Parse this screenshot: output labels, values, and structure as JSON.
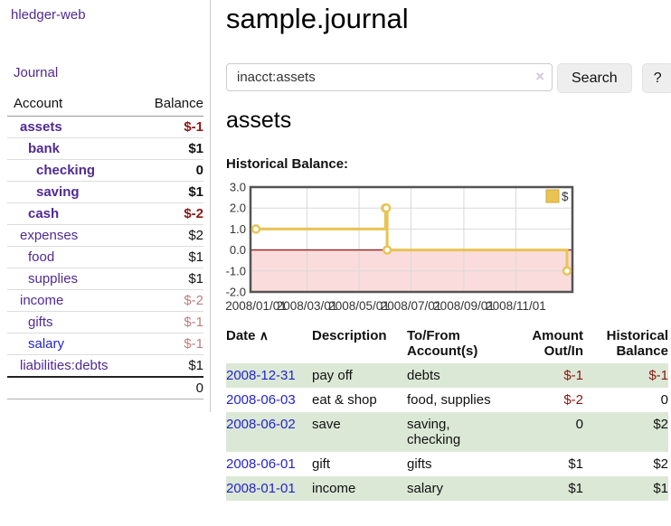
{
  "colors": {
    "purple_link": "#4f2a93",
    "blue_link": "#2424cc",
    "negative_strong": "#8b1713",
    "negative_light": "#bd7e7e",
    "row_green": "#dbe8d6",
    "chart_line": "#e9c353",
    "chart_negative_fill": "#fbdcdc",
    "chart_zero_line": "#9e1b1b"
  },
  "sidebar": {
    "app_title": "hledger-web",
    "journal_link": "Journal",
    "accounts_table": {
      "headers": {
        "account": "Account",
        "balance": "Balance"
      },
      "rows": [
        {
          "name": "assets",
          "balance": "$-1",
          "indent": 1,
          "bold": true,
          "name_style": "purple",
          "balance_style": "neg"
        },
        {
          "name": "bank",
          "balance": "$1",
          "indent": 2,
          "bold": true,
          "name_style": "purple",
          "balance_style": "pos"
        },
        {
          "name": "checking",
          "balance": "0",
          "indent": 3,
          "bold": true,
          "name_style": "purple",
          "balance_style": "pos"
        },
        {
          "name": "saving",
          "balance": "$1",
          "indent": 3,
          "bold": true,
          "name_style": "purple",
          "balance_style": "pos"
        },
        {
          "name": "cash",
          "balance": "$-2",
          "indent": 2,
          "bold": true,
          "name_style": "purple",
          "balance_style": "neg"
        },
        {
          "name": "expenses",
          "balance": "$2",
          "indent": 1,
          "bold": false,
          "name_style": "purple",
          "balance_style": "pos"
        },
        {
          "name": "food",
          "balance": "$1",
          "indent": 2,
          "bold": false,
          "name_style": "purple",
          "balance_style": "pos"
        },
        {
          "name": "supplies",
          "balance": "$1",
          "indent": 2,
          "bold": false,
          "name_style": "purple",
          "balance_style": "pos"
        },
        {
          "name": "income",
          "balance": "$-2",
          "indent": 1,
          "bold": false,
          "name_style": "purple",
          "balance_style": "neg-light"
        },
        {
          "name": "gifts",
          "balance": "$-1",
          "indent": 2,
          "bold": false,
          "name_style": "purple",
          "balance_style": "neg-light"
        },
        {
          "name": "salary",
          "balance": "$-1",
          "indent": 2,
          "bold": false,
          "name_style": "blue",
          "balance_style": "neg-light"
        },
        {
          "name": "liabilities:debts",
          "balance": "$1",
          "indent": 1,
          "bold": false,
          "name_style": "purple",
          "balance_style": "pos"
        }
      ],
      "total": "0"
    }
  },
  "header": {
    "title": "sample.journal"
  },
  "search": {
    "value": "inacct:assets",
    "clear_icon": "×",
    "button_label": "Search",
    "help_label": "?"
  },
  "account_page": {
    "title": "assets",
    "chart_heading": "Historical Balance:"
  },
  "chart_data": {
    "type": "line",
    "steps": true,
    "title": "Historical Balance",
    "legend": "$",
    "legend_position": "top-right",
    "grid": true,
    "ylim": [
      -2.0,
      3.0
    ],
    "yticks": [
      "3.0",
      "2.0",
      "1.0",
      "0.0",
      "-1.0",
      "-2.0"
    ],
    "ytick_values": [
      3,
      2,
      1,
      0,
      -1,
      -2
    ],
    "xticks": [
      "2008/01/01",
      "2008/03/01",
      "2008/05/01",
      "2008/07/01",
      "2008/09/01",
      "2008/11/01"
    ],
    "xtick_days": [
      0,
      60,
      121,
      182,
      244,
      305
    ],
    "x_range_days": 365,
    "series": [
      {
        "name": "$",
        "points_date_value": [
          [
            "2008-01-01",
            1
          ],
          [
            "2008-06-01",
            2
          ],
          [
            "2008-06-02",
            2
          ],
          [
            "2008-06-03",
            0
          ],
          [
            "2008-12-31",
            -1
          ]
        ],
        "point_days": [
          0,
          152,
          153,
          154,
          365
        ]
      }
    ]
  },
  "transactions": {
    "headers": [
      {
        "label": "Date",
        "sort_icon": "∧"
      },
      {
        "label": "Description"
      },
      {
        "label": "To/From Account(s)"
      },
      {
        "label": "Amount Out/In"
      },
      {
        "label": "Historical Balance"
      }
    ],
    "rows": [
      {
        "date": "2008-12-31",
        "description": "pay off",
        "accounts": "debts",
        "amount": "$-1",
        "amount_style": "neg",
        "balance": "$-1",
        "balance_style": "neg"
      },
      {
        "date": "2008-06-03",
        "description": "eat & shop",
        "accounts": "food, supplies",
        "amount": "$-2",
        "amount_style": "neg",
        "balance": "0",
        "balance_style": "pos"
      },
      {
        "date": "2008-06-02",
        "description": "save",
        "accounts": "saving, checking",
        "amount": "0",
        "amount_style": "pos",
        "balance": "$2",
        "balance_style": "pos"
      },
      {
        "date": "2008-06-01",
        "description": "gift",
        "accounts": "gifts",
        "amount": "$1",
        "amount_style": "pos",
        "balance": "$2",
        "balance_style": "pos"
      },
      {
        "date": "2008-01-01",
        "description": "income",
        "accounts": "salary",
        "amount": "$1",
        "amount_style": "pos",
        "balance": "$1",
        "balance_style": "pos"
      }
    ]
  }
}
